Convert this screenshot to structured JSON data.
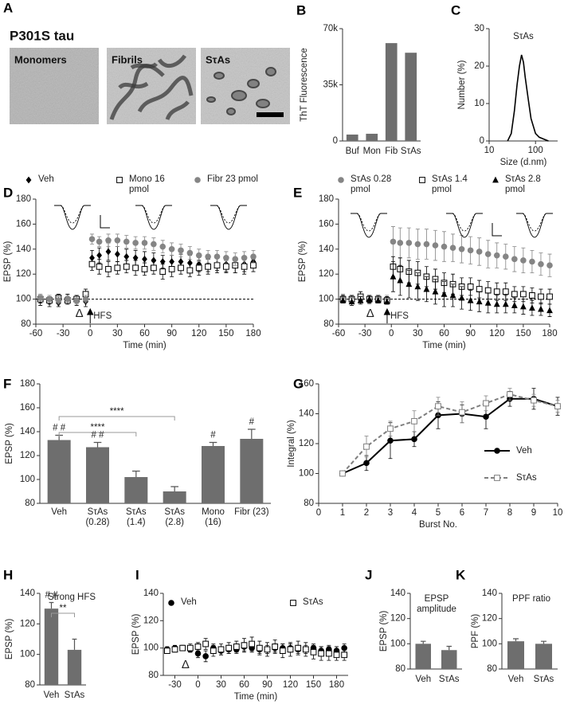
{
  "figure_a": {
    "panel": "A",
    "title": "P301S tau",
    "images": [
      "Monomers",
      "Fibrils",
      "SτAs"
    ]
  },
  "chart_data": [
    {
      "panel": "B",
      "type": "bar",
      "categories": [
        "Buf",
        "Mon",
        "Fib",
        "SτAs"
      ],
      "values": [
        4000,
        4500,
        61000,
        55000
      ],
      "color": "#6e6e6e",
      "ylabel": "ThT Fluorescence",
      "ylim": [
        0,
        70000
      ],
      "yticks": [
        0,
        {
          "value": 35000,
          "label": "35k"
        },
        {
          "value": 70000,
          "label": "70k"
        }
      ]
    },
    {
      "panel": "C",
      "type": "line",
      "title": "SτAs",
      "x": [
        25,
        30,
        35,
        40,
        45,
        50,
        55,
        60,
        70,
        80,
        100,
        120,
        150,
        190
      ],
      "values": [
        0,
        2,
        8,
        15,
        20,
        23,
        21,
        17,
        11,
        6,
        2,
        1,
        0.5,
        0
      ],
      "color": "#000000",
      "xlog": true,
      "xlim": [
        10,
        300
      ],
      "xticks": [
        10,
        100
      ],
      "ylim": [
        0,
        30
      ],
      "yticks": [
        0,
        10,
        20,
        30
      ],
      "xlabel": "Size (d.nm)",
      "ylabel": "Number (%)"
    },
    {
      "panel": "D",
      "type": "scatter",
      "legend": "top",
      "x": [
        -55,
        -45,
        -35,
        -25,
        -15,
        -5,
        2,
        10,
        20,
        30,
        40,
        50,
        60,
        70,
        80,
        90,
        100,
        110,
        120,
        130,
        140,
        150,
        160,
        170,
        180
      ],
      "xlim": [
        -60,
        180
      ],
      "xticks": [
        -60,
        -30,
        0,
        30,
        60,
        90,
        120,
        150,
        180
      ],
      "ylim": [
        80,
        180
      ],
      "yticks": [
        80,
        100,
        120,
        140,
        160,
        180
      ],
      "xlabel": "Time (min)",
      "ylabel": "EPSP (%)",
      "reference_line": 100,
      "annotations": [
        "Δ",
        "HFS"
      ],
      "series": [
        {
          "name": "Veh",
          "color": "#000000",
          "marker": "diamond",
          "values": [
            99,
            98,
            97,
            100,
            99,
            98,
            133,
            135,
            138,
            136,
            134,
            133,
            132,
            131,
            130,
            130,
            130,
            129,
            128,
            127,
            128,
            128,
            127,
            128,
            130
          ],
          "errors": [
            4,
            4,
            3,
            4,
            4,
            4,
            6,
            6,
            7,
            6,
            6,
            6,
            6,
            6,
            5,
            5,
            6,
            6,
            6,
            5,
            5,
            6,
            6,
            6,
            5
          ]
        },
        {
          "name": "Mono 16 pmol",
          "color": "#000000",
          "marker": "square-open",
          "values": [
            100,
            99,
            101,
            99,
            100,
            104,
            128,
            126,
            124,
            125,
            126,
            125,
            124,
            125,
            122,
            124,
            125,
            123,
            125,
            126,
            127,
            126,
            127,
            126,
            127
          ],
          "errors": [
            3,
            3,
            3,
            3,
            3,
            4,
            5,
            6,
            6,
            5,
            5,
            6,
            5,
            5,
            6,
            6,
            5,
            5,
            6,
            6,
            6,
            5,
            6,
            6,
            5
          ]
        },
        {
          "name": "Fibr 23 pmol",
          "color": "#858585",
          "marker": "circle",
          "values": [
            101,
            100,
            99,
            100,
            99,
            100,
            148,
            146,
            147,
            147,
            146,
            145,
            145,
            144,
            142,
            140,
            139,
            137,
            135,
            134,
            134,
            133,
            132,
            133,
            134
          ],
          "errors": [
            3,
            3,
            3,
            3,
            3,
            3,
            4,
            4,
            5,
            5,
            5,
            5,
            5,
            5,
            5,
            5,
            5,
            5,
            5,
            5,
            5,
            5,
            5,
            5,
            5
          ]
        }
      ]
    },
    {
      "panel": "E",
      "type": "scatter",
      "legend": "top",
      "x": [
        -55,
        -45,
        -35,
        -25,
        -15,
        -5,
        2,
        10,
        20,
        30,
        40,
        50,
        60,
        70,
        80,
        90,
        100,
        110,
        120,
        130,
        140,
        150,
        160,
        170,
        180
      ],
      "xlim": [
        -60,
        180
      ],
      "xticks": [
        -60,
        -30,
        0,
        30,
        60,
        90,
        120,
        150,
        180
      ],
      "ylim": [
        80,
        180
      ],
      "yticks": [
        80,
        100,
        120,
        140,
        160,
        180
      ],
      "xlabel": "Time (min)",
      "ylabel": "EPSP (%)",
      "reference_line": 100,
      "annotations": [
        "Δ",
        "HFS"
      ],
      "series": [
        {
          "name": "SτAs 0.28 pmol",
          "color": "#858585",
          "marker": "circle",
          "values": [
            101,
            100,
            100,
            99,
            100,
            100,
            146,
            145,
            145,
            144,
            144,
            143,
            142,
            141,
            140,
            139,
            138,
            136,
            135,
            134,
            132,
            131,
            130,
            128,
            127
          ],
          "errors": [
            3,
            3,
            3,
            3,
            3,
            3,
            12,
            12,
            12,
            12,
            12,
            12,
            12,
            11,
            11,
            11,
            11,
            11,
            10,
            10,
            10,
            10,
            9,
            9,
            9
          ]
        },
        {
          "name": "SτAs 1.4 pmol",
          "color": "#000000",
          "marker": "square-open",
          "values": [
            100,
            100,
            102,
            100,
            100,
            99,
            126,
            124,
            122,
            121,
            118,
            116,
            113,
            112,
            110,
            110,
            108,
            107,
            106,
            106,
            104,
            104,
            103,
            102,
            102
          ],
          "errors": [
            3,
            3,
            4,
            3,
            3,
            3,
            8,
            9,
            9,
            9,
            8,
            8,
            8,
            8,
            7,
            7,
            7,
            7,
            7,
            7,
            6,
            6,
            6,
            6,
            6
          ]
        },
        {
          "name": "SτAs 2.8 pmol",
          "color": "#000000",
          "marker": "triangle",
          "values": [
            99,
            98,
            99,
            100,
            99,
            98,
            118,
            115,
            112,
            110,
            108,
            106,
            104,
            103,
            101,
            99,
            98,
            97,
            96,
            96,
            95,
            94,
            93,
            92,
            91
          ],
          "errors": [
            2,
            3,
            3,
            3,
            2,
            2,
            12,
            12,
            11,
            11,
            10,
            10,
            10,
            9,
            9,
            8,
            8,
            8,
            7,
            7,
            6,
            6,
            6,
            5,
            5
          ]
        }
      ]
    },
    {
      "panel": "F",
      "type": "bar",
      "categories": [
        "Veh",
        "SτAs (0.28)",
        "SτAs (1.4)",
        "SτAs (2.8)",
        "Mono (16)",
        "Fibr (23)"
      ],
      "values": [
        133,
        127,
        102,
        90,
        128,
        134
      ],
      "errors": [
        4,
        4,
        5,
        4,
        3,
        8
      ],
      "color": "#6e6e6e",
      "ylabel": "EPSP (%)",
      "ylim": [
        80,
        180
      ],
      "yticks": [
        80,
        100,
        120,
        140,
        160,
        180
      ],
      "value_annotations": [
        "# #",
        "# #",
        null,
        null,
        "#",
        "#"
      ],
      "brackets": [
        {
          "from": "Veh",
          "to": "SτAs (1.4)",
          "label": "****"
        },
        {
          "from": "Veh",
          "to": "SτAs (2.8)",
          "label": "****"
        }
      ]
    },
    {
      "panel": "G",
      "type": "line",
      "legend": "lower right",
      "x": [
        1,
        2,
        3,
        4,
        5,
        6,
        7,
        8,
        9,
        10
      ],
      "xlim": [
        0,
        10
      ],
      "xticks": [
        0,
        1,
        2,
        3,
        4,
        5,
        6,
        7,
        8,
        9,
        10
      ],
      "ylim": [
        80,
        160
      ],
      "yticks": [
        80,
        100,
        120,
        140,
        160
      ],
      "xlabel": "Burst No.",
      "ylabel": "Integral (%)",
      "series": [
        {
          "name": "Veh",
          "color": "#000000",
          "marker": "circle",
          "values": [
            100,
            107,
            122,
            123,
            139,
            140,
            138,
            150,
            150,
            145
          ],
          "errors": [
            0,
            5,
            12,
            5,
            9,
            6,
            8,
            5,
            7,
            6
          ]
        },
        {
          "name": "SτAs",
          "color": "#7f7f7f",
          "marker": "square-open",
          "dash": true,
          "values": [
            100,
            118,
            130,
            135,
            145,
            141,
            147,
            153,
            149,
            145
          ],
          "errors": [
            0,
            7,
            5,
            7,
            6,
            7,
            5,
            4,
            4,
            4
          ]
        }
      ]
    },
    {
      "panel": "H",
      "type": "bar",
      "title": "Strong HFS",
      "categories": [
        "Veh",
        "SτAs"
      ],
      "values": [
        130,
        103
      ],
      "errors": [
        4,
        7
      ],
      "color": "#6e6e6e",
      "ylabel": "EPSP (%)",
      "ylim": [
        80,
        140
      ],
      "yticks": [
        80,
        100,
        120,
        140
      ],
      "value_annotations": [
        "# #",
        null
      ],
      "brackets": [
        {
          "from": "Veh",
          "to": "SτAs",
          "label": "**"
        }
      ]
    },
    {
      "panel": "I",
      "type": "scatter",
      "legend": "top",
      "x": [
        -40,
        -30,
        -20,
        -10,
        0,
        10,
        20,
        30,
        40,
        50,
        60,
        70,
        80,
        90,
        100,
        110,
        120,
        130,
        140,
        150,
        160,
        170,
        180,
        190
      ],
      "xlim": [
        -45,
        195
      ],
      "xticks": [
        -30,
        0,
        30,
        60,
        90,
        120,
        150,
        180
      ],
      "ylim": [
        80,
        140
      ],
      "yticks": [
        80,
        100,
        120,
        140
      ],
      "xlabel": "Time (min)",
      "ylabel": "EPSP (%)",
      "annotations": [
        "Δ"
      ],
      "series": [
        {
          "name": "Veh",
          "color": "#000000",
          "marker": "circle",
          "values": [
            99,
            100,
            100,
            99,
            96,
            94,
            100,
            98,
            99,
            99,
            101,
            100,
            99,
            99,
            100,
            100,
            100,
            99,
            99,
            100,
            98,
            99,
            98,
            100
          ],
          "errors": [
            2,
            2,
            2,
            2,
            3,
            4,
            3,
            3,
            3,
            3,
            3,
            3,
            3,
            3,
            3,
            3,
            3,
            3,
            3,
            3,
            3,
            3,
            3,
            3
          ]
        },
        {
          "name": "SτAs",
          "color": "#000000",
          "marker": "square-open",
          "values": [
            98,
            99,
            100,
            100,
            101,
            103,
            98,
            99,
            100,
            101,
            102,
            103,
            100,
            99,
            101,
            98,
            99,
            100,
            99,
            97,
            96,
            96,
            95,
            95
          ],
          "errors": [
            2,
            2,
            2,
            3,
            3,
            4,
            4,
            4,
            4,
            4,
            5,
            5,
            5,
            5,
            5,
            5,
            5,
            5,
            5,
            5,
            5,
            5,
            4,
            4
          ]
        }
      ]
    },
    {
      "panel": "J",
      "type": "bar",
      "title": "EPSP amplitude",
      "categories": [
        "Veh",
        "SτAs"
      ],
      "values": [
        100,
        95
      ],
      "errors": [
        2,
        3
      ],
      "color": "#6e6e6e",
      "ylabel": "EPSP (%)",
      "ylim": [
        80,
        140
      ],
      "yticks": [
        80,
        100,
        120,
        140
      ]
    },
    {
      "panel": "K",
      "type": "bar",
      "title": "PPF ratio",
      "categories": [
        "Veh",
        "SτAs"
      ],
      "values": [
        102,
        100
      ],
      "errors": [
        2,
        2
      ],
      "color": "#6e6e6e",
      "ylabel": "PPF (%)",
      "ylim": [
        80,
        140
      ],
      "yticks": [
        80,
        100,
        120,
        140
      ]
    }
  ]
}
